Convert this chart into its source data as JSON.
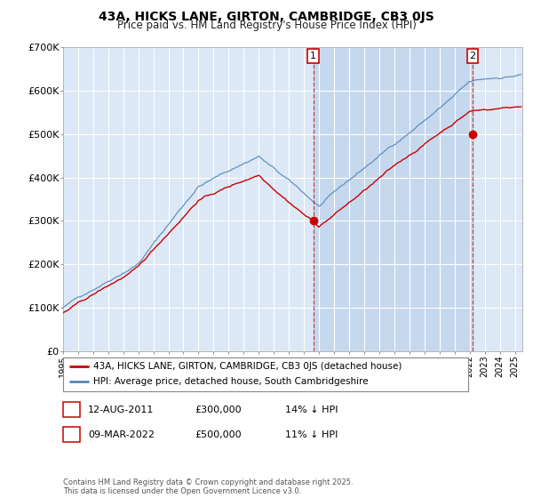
{
  "title": "43A, HICKS LANE, GIRTON, CAMBRIDGE, CB3 0JS",
  "subtitle": "Price paid vs. HM Land Registry's House Price Index (HPI)",
  "ylim": [
    0,
    700000
  ],
  "xlim_start": 1995.0,
  "xlim_end": 2025.5,
  "yticks": [
    0,
    100000,
    200000,
    300000,
    400000,
    500000,
    600000,
    700000
  ],
  "ytick_labels": [
    "£0",
    "£100K",
    "£200K",
    "£300K",
    "£400K",
    "£500K",
    "£600K",
    "£700K"
  ],
  "xticks": [
    1995,
    1996,
    1997,
    1998,
    1999,
    2000,
    2001,
    2002,
    2003,
    2004,
    2005,
    2006,
    2007,
    2008,
    2009,
    2010,
    2011,
    2012,
    2013,
    2014,
    2015,
    2016,
    2017,
    2018,
    2019,
    2020,
    2021,
    2022,
    2023,
    2024,
    2025
  ],
  "background_color": "#dce8f5",
  "plot_bg_color": "#dce8f5",
  "shade_color": "#c5d8ee",
  "grid_color": "#ffffff",
  "line_color_red": "#cc0000",
  "line_color_blue": "#5588bb",
  "transaction1_x": 2011.617,
  "transaction1_y": 300000,
  "transaction2_x": 2022.19,
  "transaction2_y": 500000,
  "legend_label_red": "43A, HICKS LANE, GIRTON, CAMBRIDGE, CB3 0JS (detached house)",
  "legend_label_blue": "HPI: Average price, detached house, South Cambridgeshire",
  "table_row1": [
    "1",
    "12-AUG-2011",
    "£300,000",
    "14% ↓ HPI"
  ],
  "table_row2": [
    "2",
    "09-MAR-2022",
    "£500,000",
    "11% ↓ HPI"
  ],
  "footer": "Contains HM Land Registry data © Crown copyright and database right 2025.\nThis data is licensed under the Open Government Licence v3.0."
}
